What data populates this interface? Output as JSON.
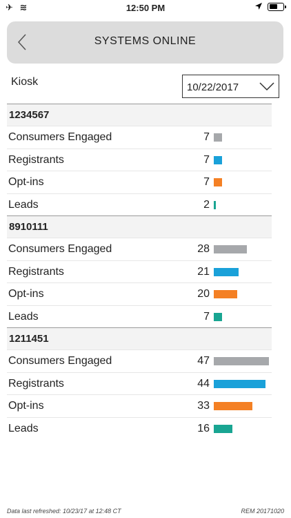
{
  "status_bar": {
    "time": "12:50 PM"
  },
  "header": {
    "title": "SYSTEMS ONLINE"
  },
  "filter": {
    "kiosk_label": "Kiosk",
    "date_value": "10/22/2017"
  },
  "colors": {
    "Consumers Engaged": "#a6a8ab",
    "Registrants": "#1aa1d9",
    "Opt-ins": "#f48024",
    "Leads": "#19a592"
  },
  "bar_scale_max": 47,
  "groups": [
    {
      "id": "1234567",
      "rows": [
        {
          "label": "Consumers Engaged",
          "value": 7
        },
        {
          "label": "Registrants",
          "value": 7
        },
        {
          "label": "Opt-ins",
          "value": 7
        },
        {
          "label": "Leads",
          "value": 2
        }
      ]
    },
    {
      "id": "8910111",
      "rows": [
        {
          "label": "Consumers Engaged",
          "value": 28
        },
        {
          "label": "Registrants",
          "value": 21
        },
        {
          "label": "Opt-ins",
          "value": 20
        },
        {
          "label": "Leads",
          "value": 7
        }
      ]
    },
    {
      "id": "1211451",
      "rows": [
        {
          "label": "Consumers Engaged",
          "value": 47
        },
        {
          "label": "Registrants",
          "value": 44
        },
        {
          "label": "Opt-ins",
          "value": 33
        },
        {
          "label": "Leads",
          "value": 16
        }
      ]
    }
  ],
  "footer": {
    "refreshed": "Data last refreshed: 10/23/17 at 12:48 CT",
    "version": "REM 20171020"
  }
}
